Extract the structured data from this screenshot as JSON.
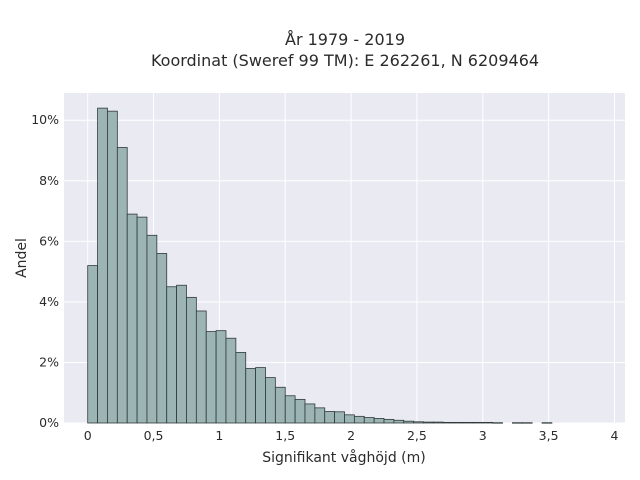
{
  "chart_data": {
    "type": "bar",
    "title_lines": [
      "År 1979 - 2019",
      "Koordinat (Sweref 99 TM): E 262261, N 6209464"
    ],
    "xlabel": "Signifikant våghöjd (m)",
    "ylabel": "Andel",
    "xlim": [
      -0.18,
      4.08
    ],
    "ylim": [
      0,
      10.9
    ],
    "x_ticks": [
      0,
      0.5,
      1,
      1.5,
      2,
      2.5,
      3,
      3.5,
      4
    ],
    "x_tick_labels": [
      "0",
      "0,5",
      "1",
      "1,5",
      "2",
      "2,5",
      "3",
      "3,5",
      "4"
    ],
    "y_ticks": [
      0,
      2,
      4,
      6,
      8,
      10
    ],
    "y_tick_labels": [
      "0%",
      "2%",
      "4%",
      "6%",
      "8%",
      "10%"
    ],
    "bin_width": 0.075,
    "bin_start": 0,
    "values": [
      5.2,
      10.4,
      10.3,
      9.1,
      6.9,
      6.8,
      6.2,
      5.6,
      4.5,
      4.55,
      4.15,
      3.7,
      3.02,
      3.05,
      2.8,
      2.33,
      1.8,
      1.83,
      1.5,
      1.18,
      0.9,
      0.78,
      0.63,
      0.5,
      0.38,
      0.37,
      0.27,
      0.22,
      0.18,
      0.15,
      0.12,
      0.09,
      0.06,
      0.04,
      0.03,
      0.03,
      0.02,
      0.02,
      0.02,
      0.02,
      0.02,
      0.01,
      0.0,
      0.01,
      0.01,
      0.0,
      0.01,
      0.0,
      0.0,
      0.0,
      0.0,
      0.0
    ],
    "grid": true,
    "colors": {
      "bar_fill": "#9cb4b4",
      "bar_edge": "#2f3a3a",
      "plot_bg": "#eaeaf2",
      "grid": "#ffffff"
    }
  }
}
